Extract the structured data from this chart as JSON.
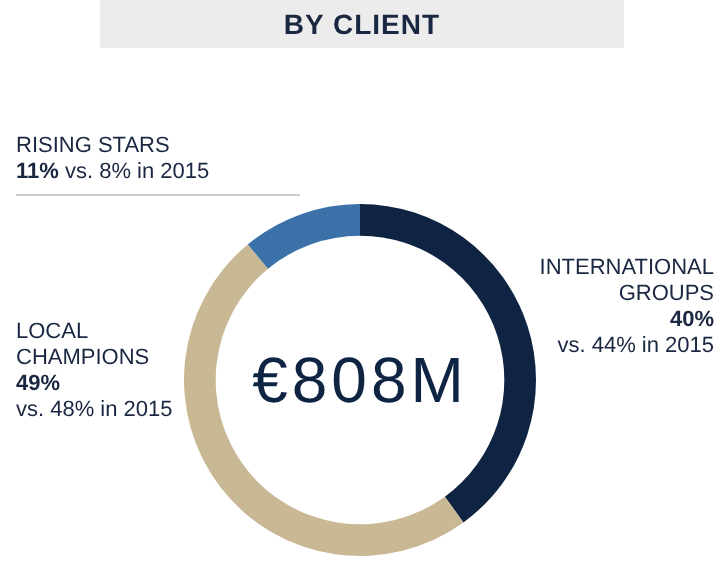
{
  "chart_data": {
    "type": "donut",
    "title": "BY CLIENT",
    "categories": [
      "INTERNATIONAL GROUPS",
      "LOCAL CHAMPIONS",
      "RISING STARS"
    ],
    "values": [
      40,
      49,
      11
    ],
    "colors": [
      "#0f2443",
      "#c8b893",
      "#3b70a8"
    ],
    "value_labels": [
      "40%",
      "49%",
      "11%"
    ],
    "annotations": [
      "vs. 44% in 2015",
      "vs. 48% in 2015",
      "vs. 8% in 2015",
      "€808M"
    ],
    "legend": false
  }
}
